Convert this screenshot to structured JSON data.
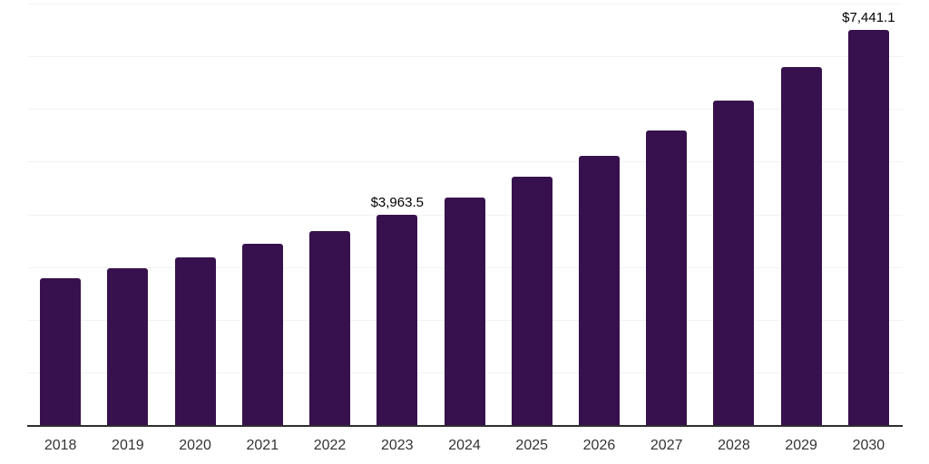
{
  "chart_data": {
    "type": "bar",
    "title": "",
    "xlabel": "",
    "ylabel": "",
    "categories": [
      "2018",
      "2019",
      "2020",
      "2021",
      "2022",
      "2023",
      "2024",
      "2025",
      "2026",
      "2027",
      "2028",
      "2029",
      "2030"
    ],
    "values": [
      2780,
      2965,
      3165,
      3425,
      3655,
      3963.5,
      4290,
      4675,
      5075,
      5560,
      6110,
      6745,
      7441.1
    ],
    "data_labels": [
      "",
      "",
      "",
      "",
      "",
      "$3,963.5",
      "",
      "",
      "",
      "",
      "",
      "",
      "$7,441.1"
    ],
    "ylim": [
      0,
      8000
    ],
    "gridline_step": 1000,
    "grid": "horizontal",
    "y_axis_tick_labels_visible": false,
    "legend": "none"
  },
  "colors": {
    "bar": "#37114d",
    "grid": "#f2f2f4",
    "axis": "#2e2e2e",
    "tick_label": "#333333",
    "data_label": "#000000",
    "background": "#ffffff"
  }
}
